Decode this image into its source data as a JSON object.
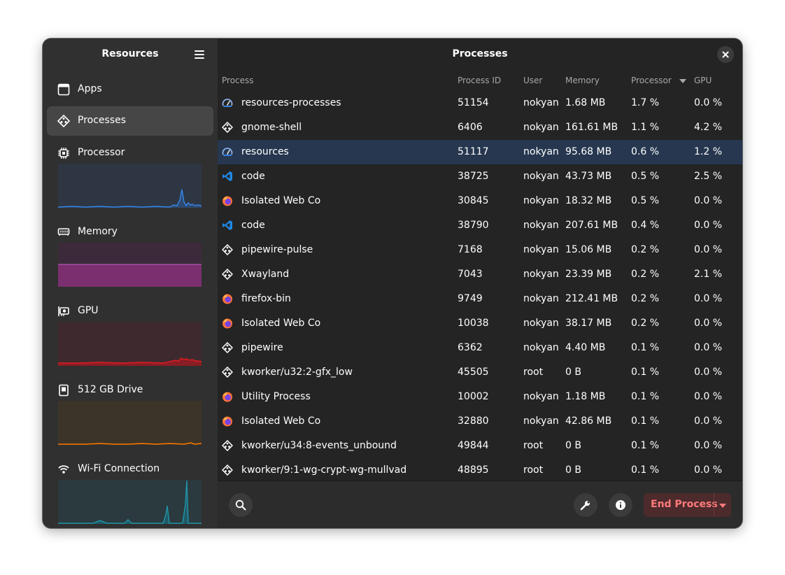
{
  "sidebar": {
    "title": "Resources",
    "menu_icon": "hamburger-menu-icon",
    "nav": [
      {
        "label": "Apps",
        "icon": "apps-icon"
      },
      {
        "label": "Processes",
        "icon": "processes-icon",
        "active": true
      }
    ],
    "graphs": [
      {
        "label": "Processor",
        "icon": "cpu-icon",
        "color": "#3584e4"
      },
      {
        "label": "Memory",
        "icon": "memory-icon",
        "color": "#c061cb"
      },
      {
        "label": "GPU",
        "icon": "gpu-icon",
        "color": "#e01b24"
      },
      {
        "label": "512 GB Drive",
        "icon": "drive-icon",
        "color": "#ff7800"
      },
      {
        "label": "Wi-Fi Connection",
        "icon": "wifi-icon",
        "color": "#2190a4"
      }
    ]
  },
  "main": {
    "title": "Processes",
    "columns": {
      "process": "Process",
      "pid": "Process ID",
      "user": "User",
      "memory": "Memory",
      "processor": "Processor",
      "gpu": "GPU"
    },
    "sort_column": "Processor",
    "selected_row": 2,
    "rows": [
      {
        "icon": "resources-icon",
        "name": "resources-processes",
        "pid": "51154",
        "user": "nokyan",
        "memory": "1.68 MB",
        "cpu": "1.7 %",
        "gpu": "0.0 %"
      },
      {
        "icon": "generic-process-icon",
        "name": "gnome-shell",
        "pid": "6406",
        "user": "nokyan",
        "memory": "161.61 MB",
        "cpu": "1.1 %",
        "gpu": "4.2 %"
      },
      {
        "icon": "resources-icon",
        "name": "resources",
        "pid": "51117",
        "user": "nokyan",
        "memory": "95.68 MB",
        "cpu": "0.6 %",
        "gpu": "1.2 %"
      },
      {
        "icon": "vscode-icon",
        "name": "code",
        "pid": "38725",
        "user": "nokyan",
        "memory": "43.73 MB",
        "cpu": "0.5 %",
        "gpu": "2.5 %"
      },
      {
        "icon": "firefox-icon",
        "name": "Isolated Web Co",
        "pid": "30845",
        "user": "nokyan",
        "memory": "18.32 MB",
        "cpu": "0.5 %",
        "gpu": "0.0 %"
      },
      {
        "icon": "vscode-icon",
        "name": "code",
        "pid": "38790",
        "user": "nokyan",
        "memory": "207.61 MB",
        "cpu": "0.4 %",
        "gpu": "0.0 %"
      },
      {
        "icon": "generic-process-icon",
        "name": "pipewire-pulse",
        "pid": "7168",
        "user": "nokyan",
        "memory": "15.06 MB",
        "cpu": "0.2 %",
        "gpu": "0.0 %"
      },
      {
        "icon": "generic-process-icon",
        "name": "Xwayland",
        "pid": "7043",
        "user": "nokyan",
        "memory": "23.39 MB",
        "cpu": "0.2 %",
        "gpu": "2.1 %"
      },
      {
        "icon": "firefox-icon",
        "name": "firefox-bin",
        "pid": "9749",
        "user": "nokyan",
        "memory": "212.41 MB",
        "cpu": "0.2 %",
        "gpu": "0.0 %"
      },
      {
        "icon": "firefox-icon",
        "name": "Isolated Web Co",
        "pid": "10038",
        "user": "nokyan",
        "memory": "38.17 MB",
        "cpu": "0.2 %",
        "gpu": "0.0 %"
      },
      {
        "icon": "generic-process-icon",
        "name": "pipewire",
        "pid": "6362",
        "user": "nokyan",
        "memory": "4.40 MB",
        "cpu": "0.1 %",
        "gpu": "0.0 %"
      },
      {
        "icon": "generic-process-icon",
        "name": "kworker/u32:2-gfx_low",
        "pid": "45505",
        "user": "root",
        "memory": "0 B",
        "cpu": "0.1 %",
        "gpu": "0.0 %"
      },
      {
        "icon": "firefox-icon",
        "name": "Utility Process",
        "pid": "10002",
        "user": "nokyan",
        "memory": "1.18 MB",
        "cpu": "0.1 %",
        "gpu": "0.0 %"
      },
      {
        "icon": "firefox-icon",
        "name": "Isolated Web Co",
        "pid": "32880",
        "user": "nokyan",
        "memory": "42.86 MB",
        "cpu": "0.1 %",
        "gpu": "0.0 %"
      },
      {
        "icon": "generic-process-icon",
        "name": "kworker/u34:8-events_unbound",
        "pid": "49844",
        "user": "root",
        "memory": "0 B",
        "cpu": "0.1 %",
        "gpu": "0.0 %"
      },
      {
        "icon": "generic-process-icon",
        "name": "kworker/9:1-wg-crypt-wg-mullvad",
        "pid": "48895",
        "user": "root",
        "memory": "0 B",
        "cpu": "0.1 %",
        "gpu": "0.0 %"
      }
    ]
  },
  "footer": {
    "search_icon": "search-icon",
    "options_icon": "wrench-icon",
    "info_icon": "info-icon",
    "end_process_label": "End Process",
    "dropdown_icon": "chevron-down-icon"
  }
}
